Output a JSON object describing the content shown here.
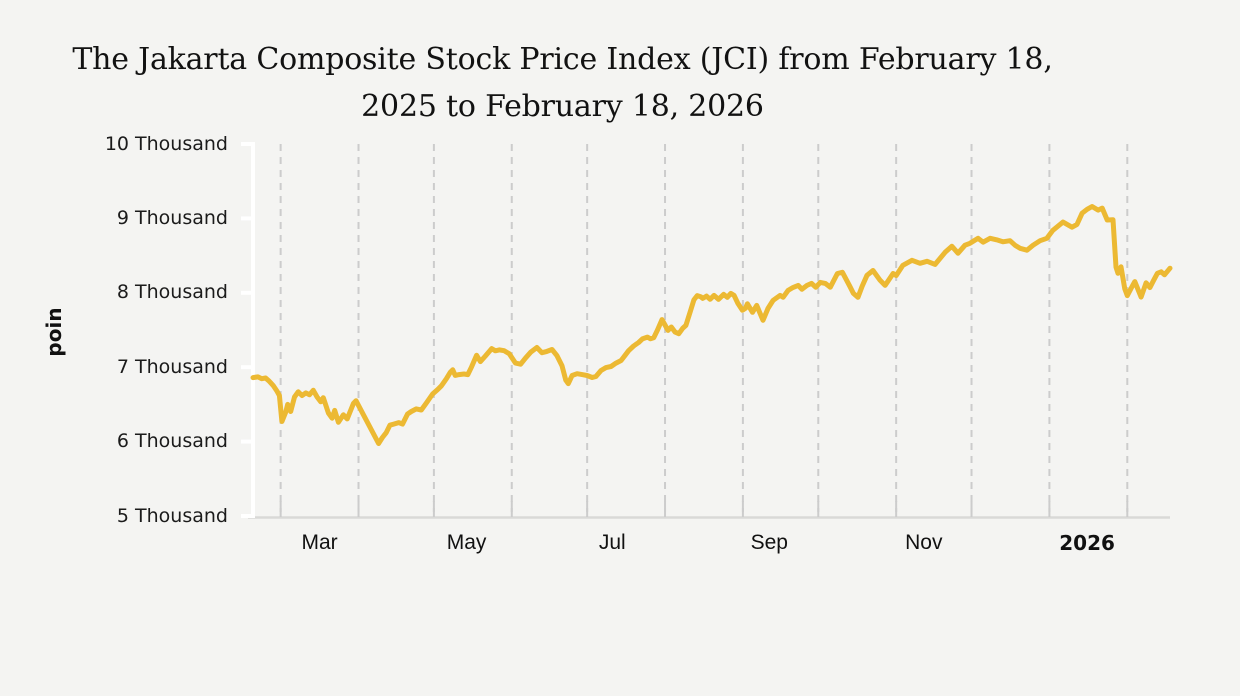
{
  "title": {
    "line1": "The Jakarta Composite Stock Price Index (JCI) from February 18,",
    "line2": "2025 to February 18, 2026"
  },
  "y_axis": {
    "title": "poin",
    "ticks": [
      {
        "value": 10000,
        "label": "10 Thousand"
      },
      {
        "value": 9000,
        "label": "9 Thousand"
      },
      {
        "value": 8000,
        "label": "8 Thousand"
      },
      {
        "value": 7000,
        "label": "7 Thousand"
      },
      {
        "value": 6000,
        "label": "6 Thousand"
      },
      {
        "value": 5000,
        "label": "5 Thousand"
      }
    ]
  },
  "x_axis": {
    "month_boundary_days": [
      11,
      42,
      72,
      103,
      133,
      164,
      195,
      225,
      256,
      286,
      317,
      348
    ],
    "labels": [
      {
        "text": "Mar",
        "day": 26.5,
        "bold": false
      },
      {
        "text": "May",
        "day": 85,
        "bold": false
      },
      {
        "text": "Jul",
        "day": 143,
        "bold": false
      },
      {
        "text": "Sep",
        "day": 205.5,
        "bold": false
      },
      {
        "text": "Nov",
        "day": 267,
        "bold": false
      },
      {
        "text": "2026",
        "day": 332,
        "bold": true
      }
    ]
  },
  "colors": {
    "background": "#f4f4f2",
    "line": "#ECB933",
    "gridline": "#cccccc",
    "x_axis_line": "#d9d9d7",
    "y_axis_line": "#ffffff",
    "text": "#111111"
  },
  "chart_data": {
    "type": "line",
    "title": "The Jakarta Composite Stock Price Index (JCI) from February 18, 2025 to February 18, 2026",
    "ylabel": "poin",
    "series_name": "JCI",
    "x_unit": "days since 2025-02-18",
    "x_range": [
      0,
      365
    ],
    "ylim": [
      5000,
      10000
    ],
    "grid": "vertical-dashed-monthly",
    "points": [
      [
        0,
        6860
      ],
      [
        2,
        6870
      ],
      [
        3.5,
        6845
      ],
      [
        5,
        6855
      ],
      [
        6.5,
        6810
      ],
      [
        8,
        6755
      ],
      [
        9.5,
        6680
      ],
      [
        10.5,
        6620
      ],
      [
        11.5,
        6270
      ],
      [
        13,
        6395
      ],
      [
        13.8,
        6500
      ],
      [
        15,
        6405
      ],
      [
        16.5,
        6600
      ],
      [
        18,
        6670
      ],
      [
        19.5,
        6620
      ],
      [
        21,
        6655
      ],
      [
        22.5,
        6630
      ],
      [
        24,
        6690
      ],
      [
        25.5,
        6600
      ],
      [
        27,
        6535
      ],
      [
        28,
        6590
      ],
      [
        30,
        6385
      ],
      [
        31.5,
        6315
      ],
      [
        32.5,
        6420
      ],
      [
        34,
        6260
      ],
      [
        36,
        6360
      ],
      [
        37.5,
        6305
      ],
      [
        40,
        6515
      ],
      [
        41,
        6550
      ],
      [
        50,
        5975
      ],
      [
        51.5,
        6055
      ],
      [
        53,
        6120
      ],
      [
        54.5,
        6220
      ],
      [
        56,
        6235
      ],
      [
        58,
        6255
      ],
      [
        59.5,
        6235
      ],
      [
        61.5,
        6370
      ],
      [
        63,
        6405
      ],
      [
        65,
        6440
      ],
      [
        67,
        6425
      ],
      [
        69,
        6520
      ],
      [
        71.5,
        6640
      ],
      [
        73.5,
        6700
      ],
      [
        75,
        6750
      ],
      [
        77,
        6845
      ],
      [
        78.5,
        6930
      ],
      [
        79.5,
        6965
      ],
      [
        80.5,
        6890
      ],
      [
        82,
        6900
      ],
      [
        84,
        6908
      ],
      [
        85.5,
        6900
      ],
      [
        87,
        7005
      ],
      [
        89,
        7160
      ],
      [
        90.5,
        7075
      ],
      [
        92.5,
        7150
      ],
      [
        95,
        7250
      ],
      [
        96.5,
        7220
      ],
      [
        98,
        7232
      ],
      [
        100,
        7222
      ],
      [
        102,
        7180
      ],
      [
        104.5,
        7055
      ],
      [
        106.5,
        7040
      ],
      [
        108.5,
        7125
      ],
      [
        110.5,
        7200
      ],
      [
        113,
        7265
      ],
      [
        115,
        7195
      ],
      [
        117,
        7212
      ],
      [
        119,
        7238
      ],
      [
        121,
        7155
      ],
      [
        123,
        7020
      ],
      [
        124.5,
        6825
      ],
      [
        125.5,
        6780
      ],
      [
        127,
        6888
      ],
      [
        129,
        6912
      ],
      [
        131,
        6900
      ],
      [
        133,
        6888
      ],
      [
        135,
        6862
      ],
      [
        136.5,
        6875
      ],
      [
        138.5,
        6955
      ],
      [
        140.5,
        6995
      ],
      [
        142.5,
        7010
      ],
      [
        144.5,
        7055
      ],
      [
        146.5,
        7090
      ],
      [
        148,
        7155
      ],
      [
        149.5,
        7222
      ],
      [
        151.5,
        7285
      ],
      [
        153.5,
        7332
      ],
      [
        155,
        7380
      ],
      [
        157,
        7405
      ],
      [
        158.2,
        7382
      ],
      [
        159.5,
        7395
      ],
      [
        161,
        7500
      ],
      [
        162.8,
        7640
      ],
      [
        165.2,
        7495
      ],
      [
        166.5,
        7540
      ],
      [
        168,
        7472
      ],
      [
        169.5,
        7450
      ],
      [
        171,
        7522
      ],
      [
        172.3,
        7562
      ],
      [
        174,
        7740
      ],
      [
        175.5,
        7905
      ],
      [
        176.8,
        7962
      ],
      [
        178.2,
        7948
      ],
      [
        179,
        7925
      ],
      [
        180.5,
        7955
      ],
      [
        182,
        7912
      ],
      [
        183.5,
        7965
      ],
      [
        185.3,
        7912
      ],
      [
        187.3,
        7978
      ],
      [
        188.8,
        7940
      ],
      [
        190.2,
        7992
      ],
      [
        191.5,
        7965
      ],
      [
        193,
        7858
      ],
      [
        194.8,
        7765
      ],
      [
        196,
        7792
      ],
      [
        196.8,
        7852
      ],
      [
        198.8,
        7738
      ],
      [
        200.5,
        7830
      ],
      [
        203,
        7630
      ],
      [
        205,
        7790
      ],
      [
        207,
        7898
      ],
      [
        209.8,
        7965
      ],
      [
        211,
        7940
      ],
      [
        213,
        8032
      ],
      [
        215,
        8072
      ],
      [
        217,
        8100
      ],
      [
        218.5,
        8048
      ],
      [
        220.5,
        8100
      ],
      [
        222.3,
        8127
      ],
      [
        224,
        8075
      ],
      [
        225.8,
        8140
      ],
      [
        227.8,
        8127
      ],
      [
        229.8,
        8075
      ],
      [
        232.6,
        8260
      ],
      [
        234.6,
        8275
      ],
      [
        237.5,
        8090
      ],
      [
        239,
        7992
      ],
      [
        240.8,
        7940
      ],
      [
        242.5,
        8090
      ],
      [
        244.4,
        8235
      ],
      [
        246.8,
        8300
      ],
      [
        249.6,
        8168
      ],
      [
        251.6,
        8100
      ],
      [
        254.8,
        8260
      ],
      [
        256,
        8232
      ],
      [
        258.7,
        8370
      ],
      [
        262.3,
        8437
      ],
      [
        265.5,
        8396
      ],
      [
        268.3,
        8423
      ],
      [
        271.5,
        8382
      ],
      [
        275.5,
        8545
      ],
      [
        278.2,
        8625
      ],
      [
        280.6,
        8532
      ],
      [
        283.4,
        8640
      ],
      [
        285.4,
        8665
      ],
      [
        288.6,
        8732
      ],
      [
        290.6,
        8680
      ],
      [
        293.4,
        8732
      ],
      [
        296,
        8712
      ],
      [
        298.5,
        8685
      ],
      [
        301.3,
        8700
      ],
      [
        303.3,
        8640
      ],
      [
        305.3,
        8598
      ],
      [
        308.1,
        8572
      ],
      [
        310.5,
        8640
      ],
      [
        313.3,
        8700
      ],
      [
        316,
        8732
      ],
      [
        318.4,
        8840
      ],
      [
        322.4,
        8950
      ],
      [
        326,
        8882
      ],
      [
        328,
        8920
      ],
      [
        330,
        9070
      ],
      [
        332,
        9122
      ],
      [
        334,
        9160
      ],
      [
        336.4,
        9112
      ],
      [
        338,
        9138
      ],
      [
        340,
        8978
      ],
      [
        342.3,
        8982
      ],
      [
        343.5,
        8345
      ],
      [
        344.3,
        8262
      ],
      [
        345.5,
        8350
      ],
      [
        347,
        8052
      ],
      [
        348,
        7962
      ],
      [
        349.5,
        8060
      ],
      [
        351,
        8150
      ],
      [
        353.5,
        7942
      ],
      [
        355.5,
        8135
      ],
      [
        357,
        8070
      ],
      [
        358.5,
        8170
      ],
      [
        360,
        8262
      ],
      [
        361.5,
        8282
      ],
      [
        362.8,
        8242
      ],
      [
        364,
        8290
      ],
      [
        365,
        8330
      ]
    ]
  }
}
